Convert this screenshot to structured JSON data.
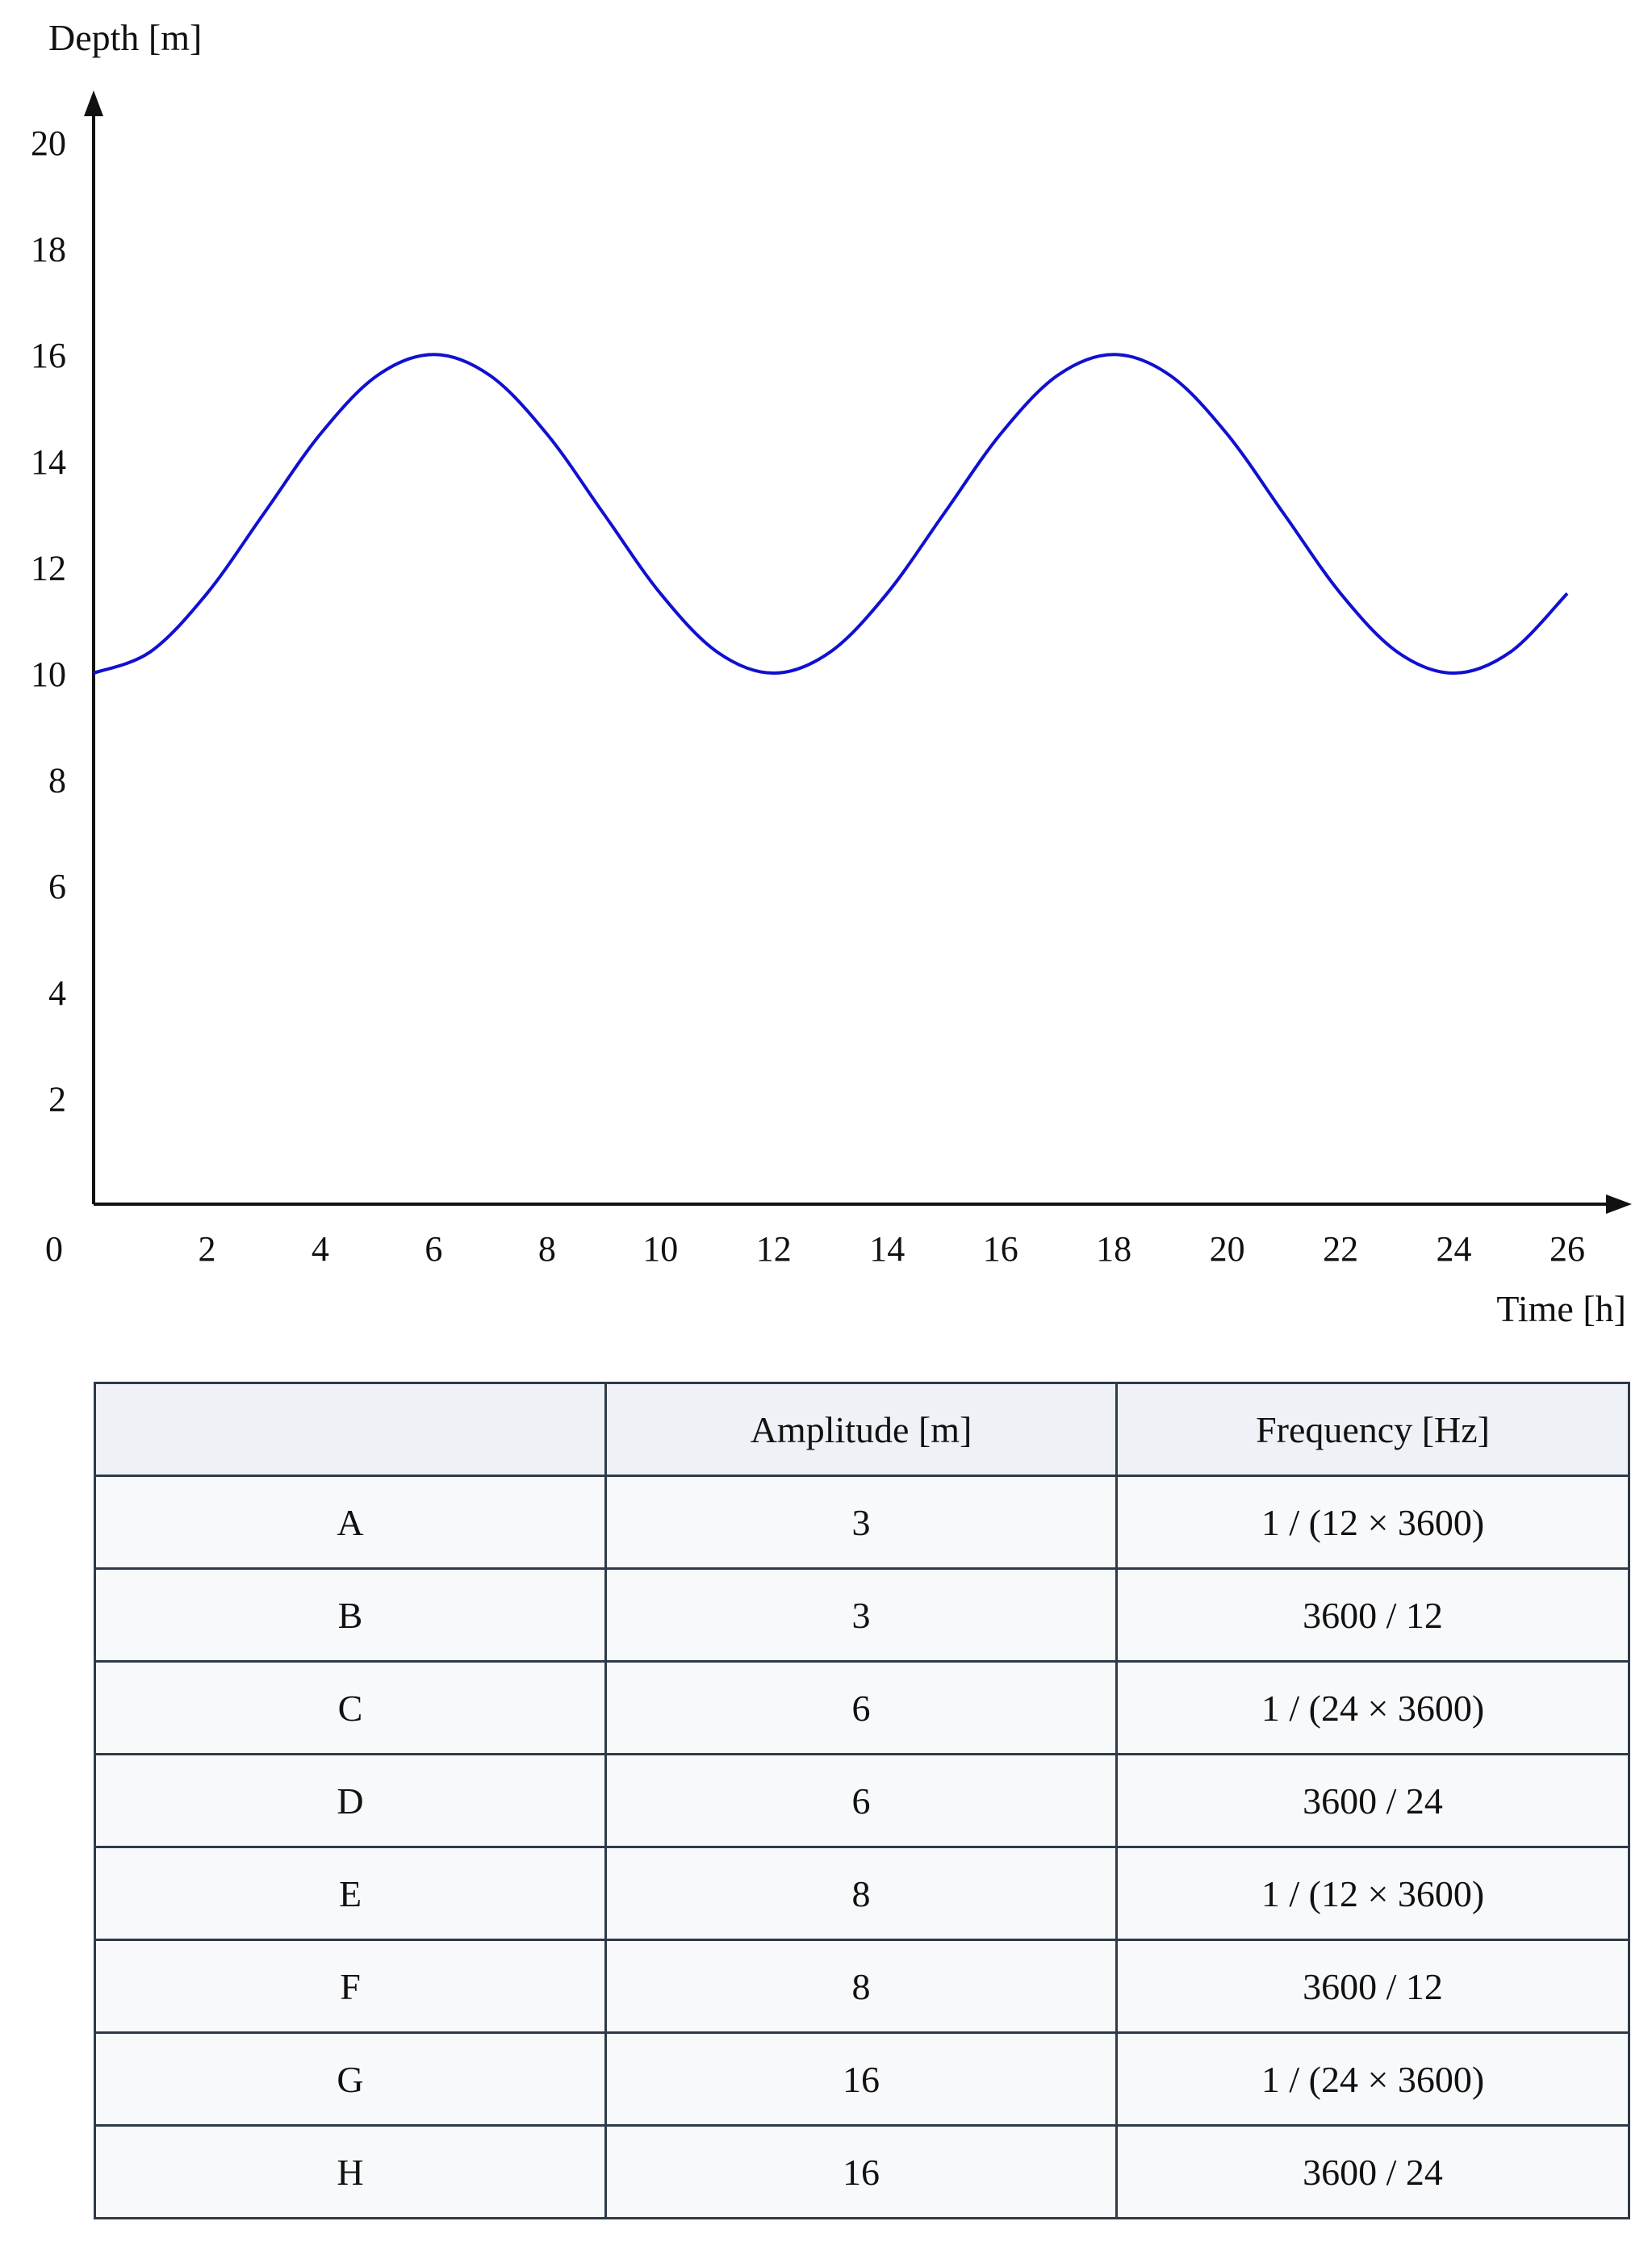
{
  "chart_data": {
    "type": "line",
    "title": "",
    "xlabel": "Time [h]",
    "ylabel": "Depth [m]",
    "xlim": [
      0,
      27
    ],
    "ylim": [
      0,
      21
    ],
    "x_ticks": [
      0,
      2,
      4,
      6,
      8,
      10,
      12,
      14,
      16,
      18,
      20,
      22,
      24,
      26
    ],
    "y_ticks": [
      2,
      4,
      6,
      8,
      10,
      12,
      14,
      16,
      18,
      20
    ],
    "grid": false,
    "series": [
      {
        "color": "#1010d0",
        "x": [
          0,
          1,
          2,
          3,
          4,
          5,
          6,
          7,
          8,
          9,
          10,
          11,
          12,
          13,
          14,
          15,
          16,
          17,
          18,
          19,
          20,
          21,
          22,
          23,
          24,
          25,
          26
        ],
        "y": [
          10,
          10.4,
          11.5,
          13,
          14.5,
          15.6,
          16,
          15.6,
          14.5,
          13,
          11.5,
          10.4,
          10,
          10.4,
          11.5,
          13,
          14.5,
          15.6,
          16,
          15.6,
          14.5,
          13,
          11.5,
          10.4,
          10,
          10.4,
          11.5
        ]
      }
    ]
  },
  "table": {
    "headers": [
      "",
      "Amplitude [m]",
      "Frequency [Hz]"
    ],
    "rows": [
      [
        "A",
        "3",
        "1 / (12 × 3600)"
      ],
      [
        "B",
        "3",
        "3600 / 12"
      ],
      [
        "C",
        "6",
        "1 / (24 × 3600)"
      ],
      [
        "D",
        "6",
        "3600 / 24"
      ],
      [
        "E",
        "8",
        "1 / (12 × 3600)"
      ],
      [
        "F",
        "8",
        "3600 / 12"
      ],
      [
        "G",
        "16",
        "1 / (24 × 3600)"
      ],
      [
        "H",
        "16",
        "3600 / 24"
      ]
    ]
  }
}
